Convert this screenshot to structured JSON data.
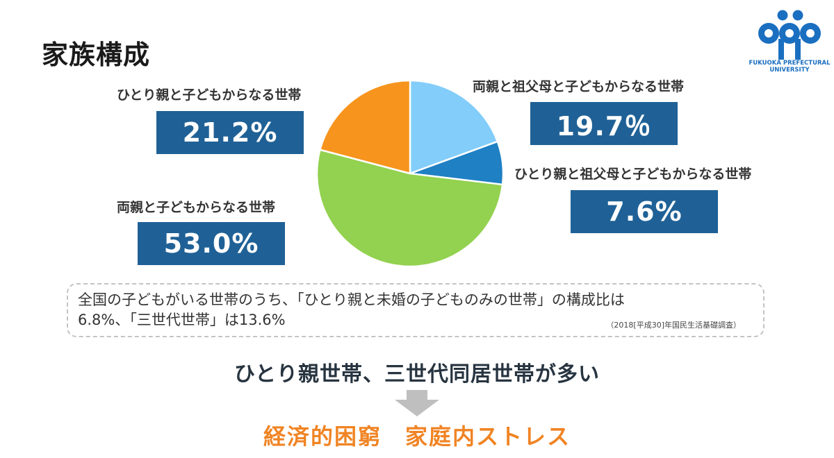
{
  "slide": {
    "title": "家族構成",
    "logo": {
      "icon": "fukuoka-prefectural-university-logo",
      "line1": "FUKUOKA PREFECTURAL",
      "line2": "UNIVERSITY",
      "color": "#1b6fc0"
    },
    "segments": [
      {
        "label": "両親と祖父母と子どもからなる世帯",
        "value_text": "19.7％",
        "color": "#82cdfa"
      },
      {
        "label": "ひとり親と祖父母と子どもからなる世帯",
        "value_text": "7.6%",
        "color": "#1f80c4"
      },
      {
        "label": "両親と子どもからなる世帯",
        "value_text": "53.0%",
        "color": "#93d150"
      },
      {
        "label": "ひとり親と子どもからなる世帯",
        "value_text": "21.2%",
        "color": "#f7941d"
      }
    ],
    "note": {
      "line1": "全国の子どもがいる世帯のうち、「ひとり親と未婚の子どものみの世帯」の構成比は",
      "line2": "6.8%、「三世代世帯」は13.6%",
      "source": "（2018[平成30]年国民生活基礎調査）"
    },
    "conclusion": "ひとり親世帯、三世代同居世帯が多い",
    "result": "経済的困窮　家庭内ストレス"
  },
  "chart_data": {
    "type": "pie",
    "title": "家族構成",
    "categories": [
      "両親と祖父母と子どもからなる世帯",
      "ひとり親と祖父母と子どもからなる世帯",
      "両親と子どもからなる世帯",
      "ひとり親と子どもからなる世帯"
    ],
    "values": [
      19.7,
      7.6,
      53.0,
      21.2
    ],
    "colors": [
      "#82cdfa",
      "#1f80c4",
      "#93d150",
      "#f7941d"
    ],
    "start_angle": "12 o'clock, clockwise",
    "legend": "none (callout labels)"
  }
}
